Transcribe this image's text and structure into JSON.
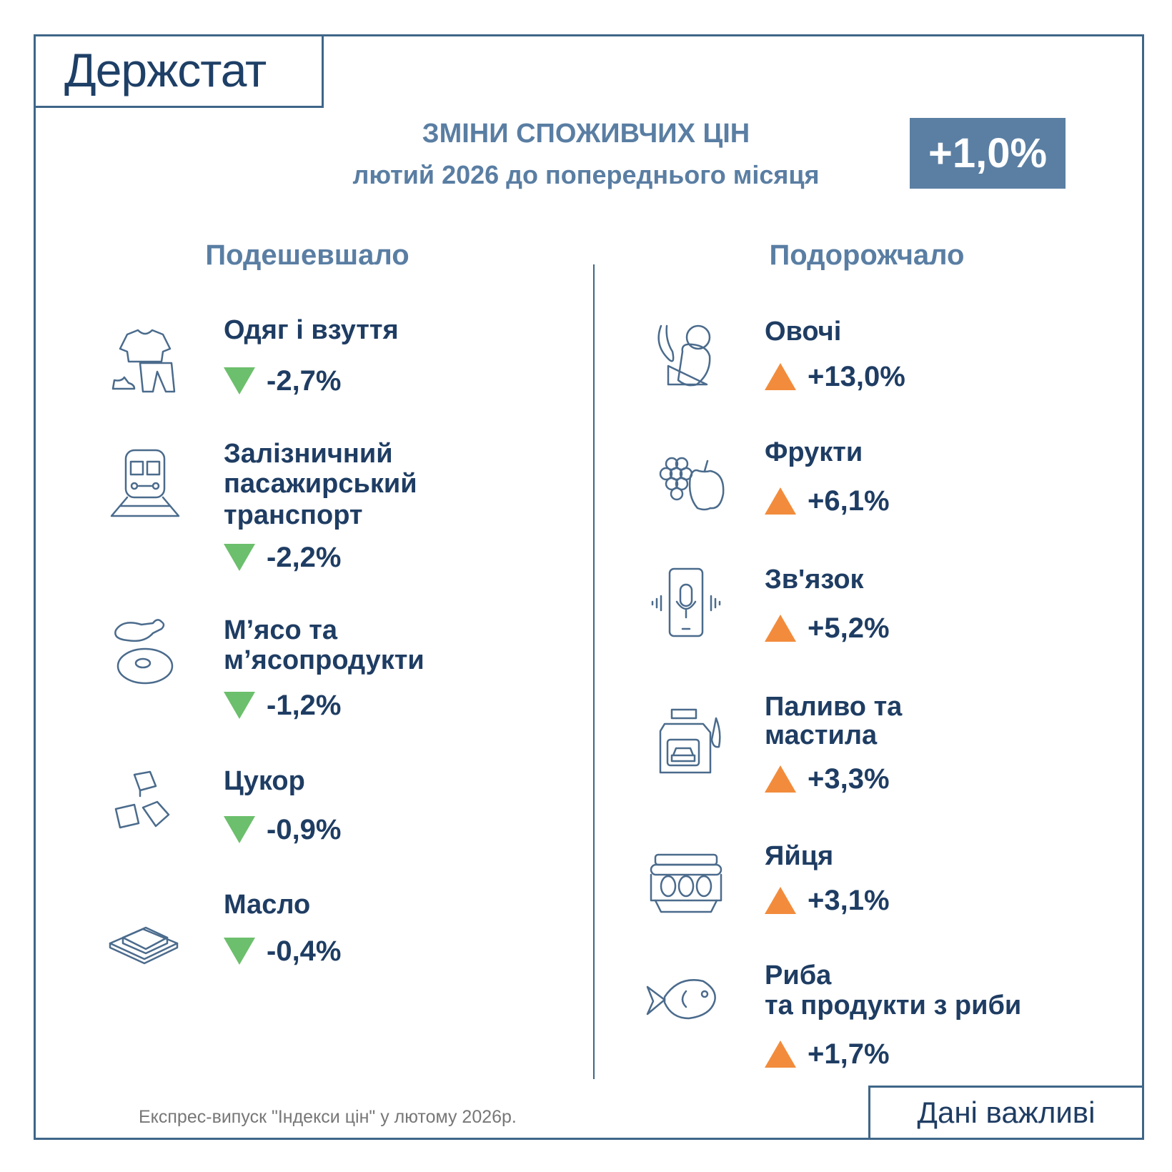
{
  "logo": "Держстат",
  "header": {
    "title": "ЗМІНИ СПОЖИВЧИХ ЦІН",
    "subtitle": "лютий 2026 до попереднього місяця",
    "total_change": "+1,0%"
  },
  "colors": {
    "frame": "#3f6688",
    "badge": "#5b7fa3",
    "text": "#1f3d63",
    "down": "#6cbf6c",
    "up": "#f28c3c"
  },
  "cheaper": {
    "heading": "Подешевшало",
    "items": [
      {
        "icon": "clothes-icon",
        "name_lines": [
          "Одяг і взуття"
        ],
        "value": "-2,7%"
      },
      {
        "icon": "train-icon",
        "name_lines": [
          "Залізничний",
          "пасажирський",
          "транспорт"
        ],
        "value": "-2,2%"
      },
      {
        "icon": "meat-icon",
        "name_lines": [
          "М’ясо та",
          "м’ясопродукти"
        ],
        "value": "-1,2%"
      },
      {
        "icon": "sugar-cubes-icon",
        "name_lines": [
          "Цукор"
        ],
        "value": "-0,9%"
      },
      {
        "icon": "butter-icon",
        "name_lines": [
          "Масло"
        ],
        "value": "-0,4%"
      }
    ]
  },
  "pricier": {
    "heading": "Подорожчало",
    "items": [
      {
        "icon": "vegetables-icon",
        "name_lines": [
          "Овочі"
        ],
        "value": "+13,0%"
      },
      {
        "icon": "fruits-icon",
        "name_lines": [
          "Фрукти"
        ],
        "value": "+6,1%"
      },
      {
        "icon": "phone-icon",
        "name_lines": [
          "Зв'язок"
        ],
        "value": "+5,2%"
      },
      {
        "icon": "fuel-canister-icon",
        "name_lines": [
          "Паливо та",
          "мастила"
        ],
        "value": "+3,3%"
      },
      {
        "icon": "eggs-icon",
        "name_lines": [
          "Яйця"
        ],
        "value": "+3,1%"
      },
      {
        "icon": "fish-icon",
        "name_lines": [
          "Риба",
          "та продукти з риби"
        ],
        "value": "+1,7%"
      }
    ]
  },
  "footer": {
    "source": "Експрес-випуск \"Індекси цін\" у лютому 2026р.",
    "tagline": "Дані важливі"
  }
}
